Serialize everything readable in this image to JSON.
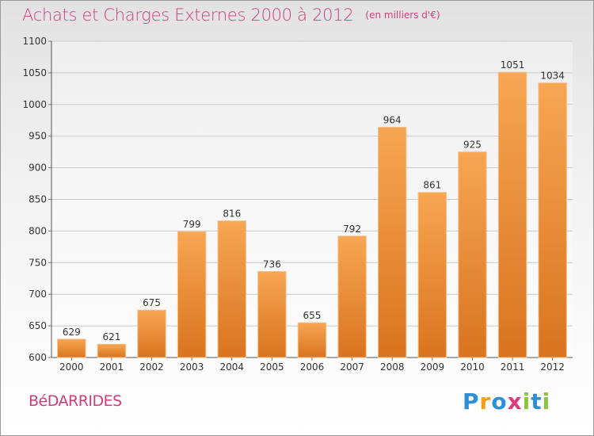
{
  "title": "Achats et Charges Externes 2000 à 2012",
  "subtitle": "(en milliers d'€)",
  "town": "BéDARRIDES",
  "brand": {
    "letters": [
      {
        "ch": "P",
        "color": "#2d8fd6"
      },
      {
        "ch": "r",
        "color": "#f0a020"
      },
      {
        "ch": "o",
        "color": "#2d8fd6"
      },
      {
        "ch": "x",
        "color": "#e03a7a"
      },
      {
        "ch": "i",
        "color": "#8cc63f"
      },
      {
        "ch": "t",
        "color": "#2d8fd6"
      },
      {
        "ch": "i",
        "color": "#8cc63f"
      }
    ]
  },
  "colors": {
    "bar_top": "#f7a653",
    "bar_bottom": "#d9741f",
    "title": "#cf3f7c",
    "grid": "#c8c8c8"
  },
  "chart_data": {
    "type": "bar",
    "title": "Achats et Charges Externes 2000 à 2012",
    "subtitle": "(en milliers d'€)",
    "categories": [
      "2000",
      "2001",
      "2002",
      "2003",
      "2004",
      "2005",
      "2006",
      "2007",
      "2008",
      "2009",
      "2010",
      "2011",
      "2012"
    ],
    "values": [
      629,
      621,
      675,
      799,
      816,
      736,
      655,
      792,
      964,
      861,
      925,
      1051,
      1034
    ],
    "ylim": [
      600,
      1100
    ],
    "yticks": [
      600,
      650,
      700,
      750,
      800,
      850,
      900,
      950,
      1000,
      1050,
      1100
    ],
    "grid": true,
    "data_labels": true,
    "legend": "none"
  }
}
